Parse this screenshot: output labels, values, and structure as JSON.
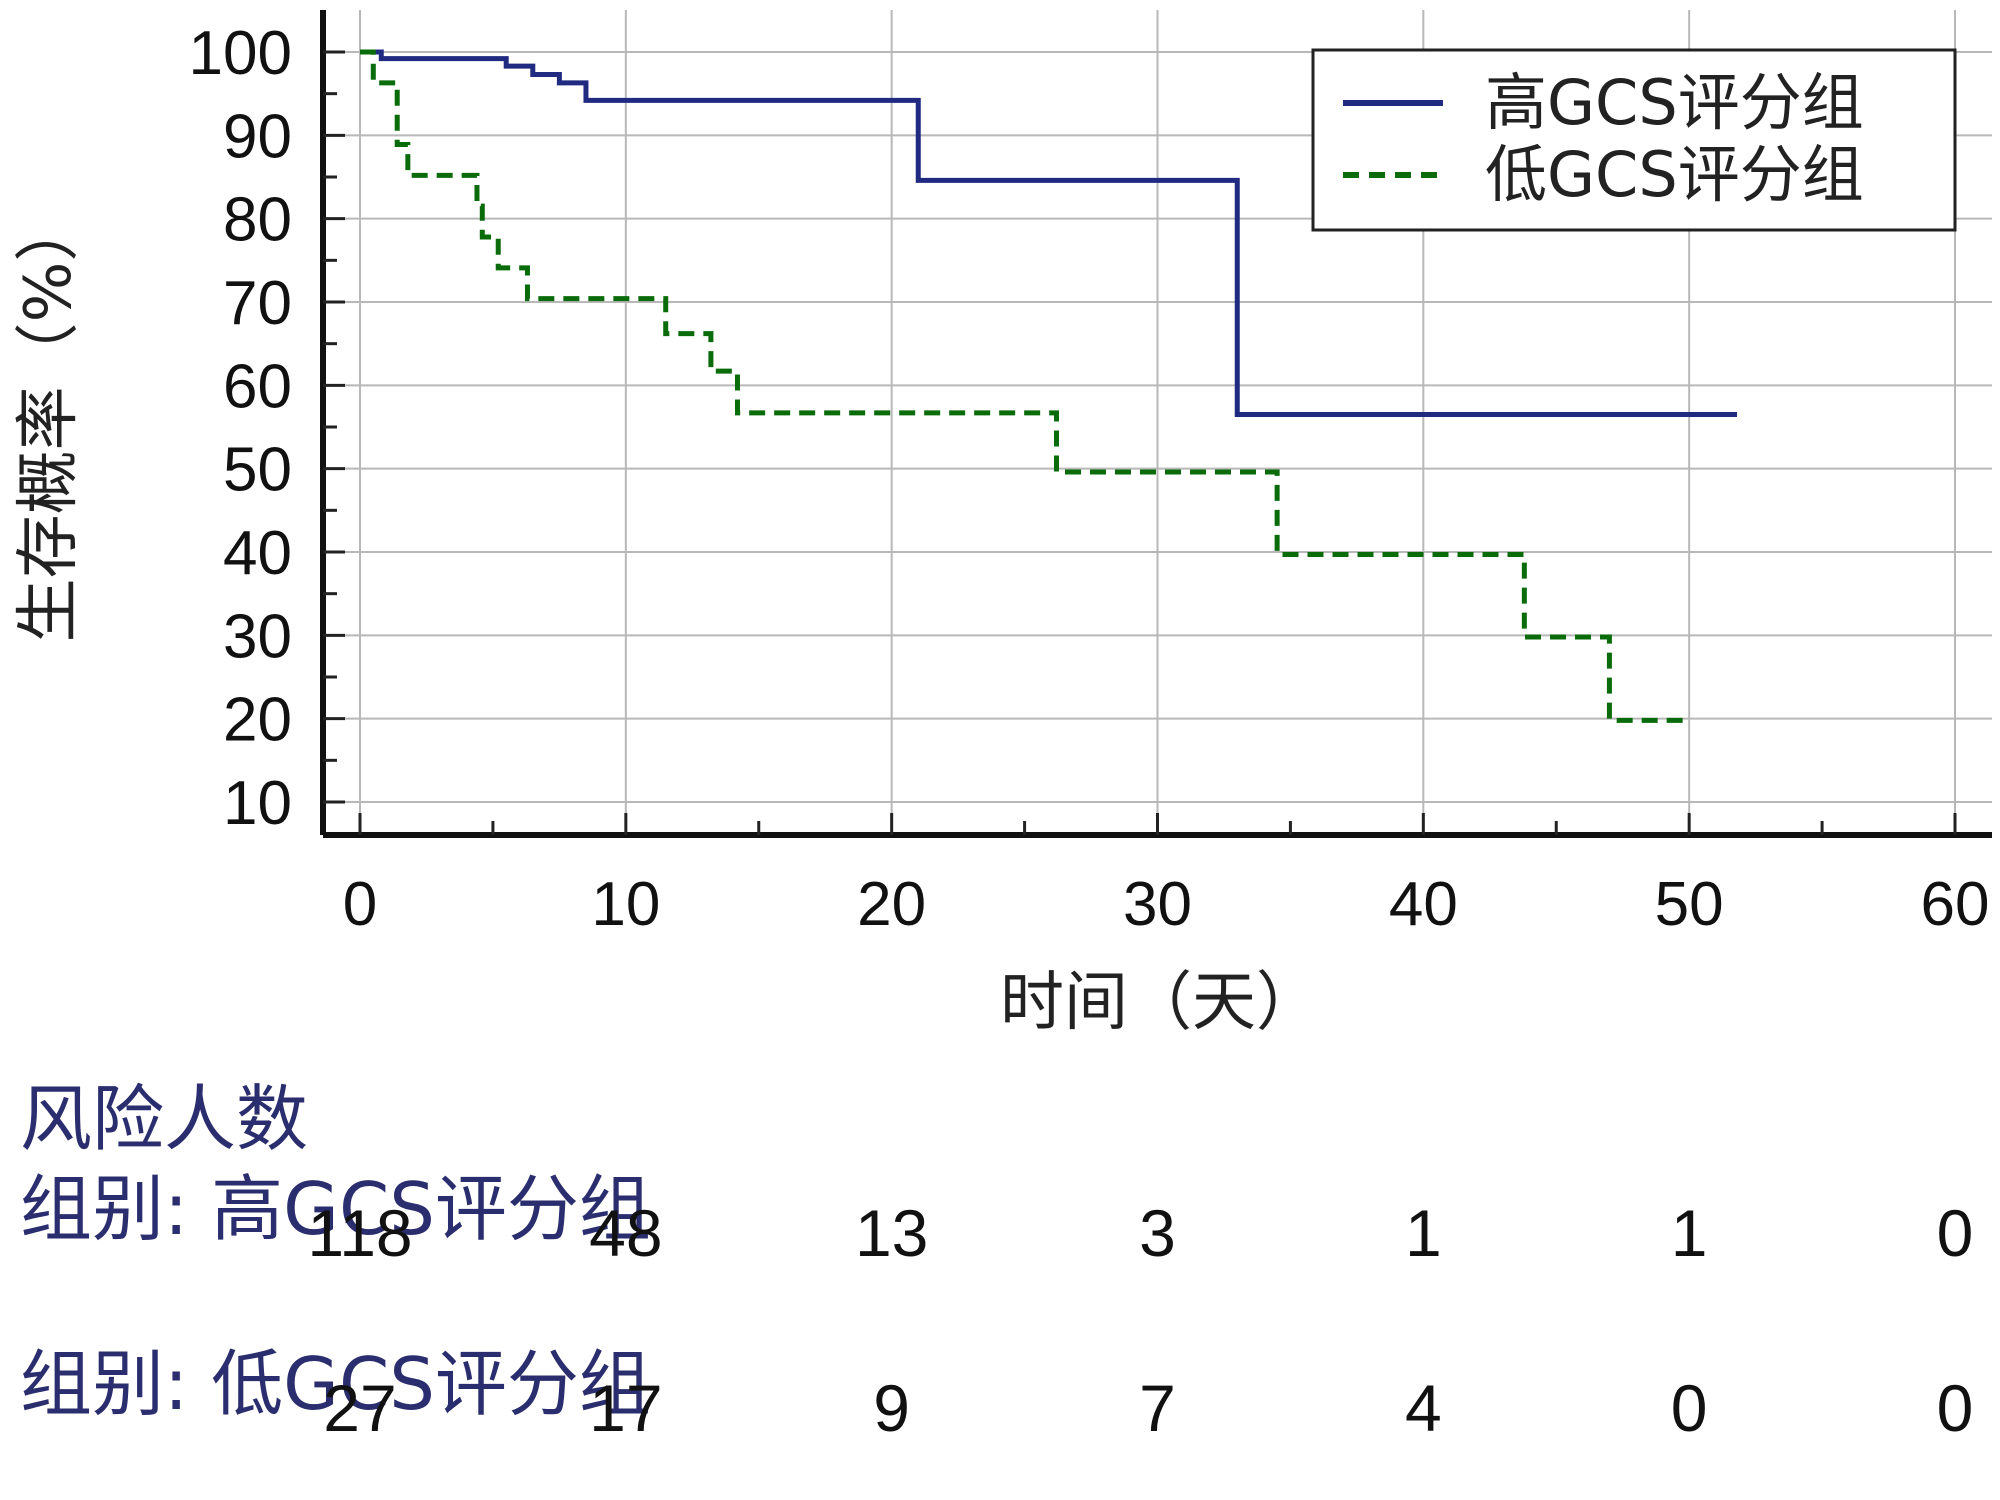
{
  "chart_data": {
    "type": "line",
    "subtype": "kaplan-meier-step",
    "xlabel": "时间（天）",
    "ylabel": "生存概率（%）",
    "xlim": [
      0,
      60
    ],
    "ylim": [
      5,
      100
    ],
    "x_ticks": [
      0,
      10,
      20,
      30,
      40,
      50,
      60
    ],
    "y_ticks": [
      10,
      20,
      30,
      40,
      50,
      60,
      70,
      80,
      90,
      100
    ],
    "grid": true,
    "legend_position": "top-right",
    "series": [
      {
        "name": "高GCS评分组",
        "color": "#1f2a80",
        "style": "solid",
        "x": [
          0,
          0.8,
          5.5,
          6.5,
          7.5,
          8.5,
          21,
          33,
          51.8
        ],
        "y": [
          100,
          99.2,
          98.3,
          97.3,
          96.3,
          94.2,
          84.6,
          56.5,
          56.5
        ]
      },
      {
        "name": "低GCS评分组",
        "color": "#0a6b0a",
        "style": "dashed",
        "x": [
          0,
          0.5,
          1.4,
          1.8,
          4.4,
          4.6,
          5.2,
          6.3,
          11.5,
          13.2,
          14.2,
          26.2,
          34.5,
          43.8,
          47,
          49.8
        ],
        "y": [
          100,
          96.3,
          88.9,
          85.2,
          81.5,
          77.8,
          74.1,
          70.4,
          66.2,
          61.7,
          56.7,
          49.6,
          39.7,
          29.8,
          19.8,
          19.8
        ]
      }
    ]
  },
  "risk_table": {
    "title": "风险人数",
    "group_prefix": "组别:",
    "time_points": [
      0,
      10,
      20,
      30,
      40,
      50,
      60
    ],
    "groups": [
      {
        "name": "高GCS评分组",
        "counts": [
          "118",
          "48",
          "13",
          "3",
          "1",
          "1",
          "0"
        ]
      },
      {
        "name": "低GCS评分组",
        "counts": [
          "27",
          "17",
          "9",
          "7",
          "4",
          "0",
          "0"
        ]
      }
    ]
  }
}
